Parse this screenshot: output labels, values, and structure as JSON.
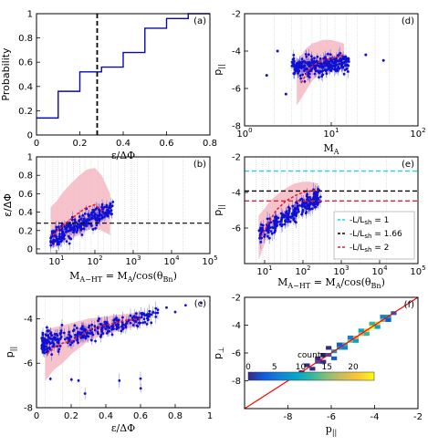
{
  "colors": {
    "points": "#1010d0",
    "band": "#f4b9c3",
    "median": "#e0203a",
    "frame": "#000000",
    "cdf": "#0a0aa8",
    "lines": [
      "#18d8d8",
      "#000000",
      "#e0203a"
    ],
    "diag": "#ff0000",
    "colormap": [
      "#352a87",
      "#0f5cdd",
      "#1481d6",
      "#06a4ca",
      "#2eb7a4",
      "#87bf77",
      "#d1bb59",
      "#fec832",
      "#f9fb0e"
    ]
  },
  "chart_data": [
    {
      "id": "a",
      "panel_label": "(a)",
      "type": "line",
      "xlabel": "ε/ΔΦ",
      "ylabel": "Probability",
      "xlim": [
        0,
        0.8
      ],
      "ylim": [
        0,
        1
      ],
      "xscale": "linear",
      "xticks": [
        "0",
        "0.2",
        "0.4",
        "0.6",
        "0.8"
      ],
      "xtick_values": [
        0,
        0.2,
        0.4,
        0.6,
        0.8
      ],
      "yticks": [
        "0",
        "0.2",
        "0.4",
        "0.6",
        "0.8",
        "1"
      ],
      "ytick_values": [
        0,
        0.2,
        0.4,
        0.6,
        0.8,
        1
      ],
      "step_x": [
        0,
        0.1,
        0.1,
        0.2,
        0.2,
        0.3,
        0.3,
        0.4,
        0.4,
        0.5,
        0.5,
        0.6,
        0.6,
        0.7,
        0.7,
        0.8
      ],
      "step_y": [
        0.14,
        0.14,
        0.36,
        0.36,
        0.52,
        0.52,
        0.56,
        0.56,
        0.68,
        0.68,
        0.88,
        0.88,
        0.96,
        0.96,
        1.0,
        1.0
      ],
      "vline": 0.28
    },
    {
      "id": "d",
      "panel_label": "(d)",
      "type": "scatter",
      "xlabel": "M_A",
      "ylabel": "p_||",
      "xlim": [
        1,
        100
      ],
      "ylim": [
        -8,
        -2
      ],
      "xscale": "log",
      "xticks": [
        "10",
        "10",
        "10"
      ],
      "xtick_exp": [
        "0",
        "1",
        "2"
      ],
      "xtick_values": [
        1,
        10,
        100
      ],
      "yticks": [
        "-8",
        "-6",
        "-4",
        "-2"
      ],
      "ytick_values": [
        -8,
        -6,
        -4,
        -2
      ],
      "cloud": {
        "x_range": [
          3.5,
          16
        ],
        "y_center": -4.8,
        "y_spread": 0.9,
        "count": 260,
        "seed": 11
      },
      "outliers_x": [
        1.8,
        2.4,
        3.0,
        25,
        40
      ],
      "outliers_y": [
        -5.3,
        -4.0,
        -6.3,
        -4.2,
        -4.5
      ],
      "band_x": [
        4,
        5,
        6,
        7,
        8,
        10,
        12,
        14
      ],
      "band_lo": [
        -6.9,
        -6.2,
        -5.6,
        -5.3,
        -5.1,
        -4.9,
        -4.7,
        -4.6
      ],
      "band_hi": [
        -4.6,
        -3.9,
        -3.6,
        -3.5,
        -3.4,
        -3.4,
        -3.5,
        -3.6
      ],
      "median_x": [
        4.5,
        5.5,
        6.5,
        8,
        10,
        12,
        14
      ],
      "median_y": [
        -5.7,
        -5.0,
        -4.7,
        -4.5,
        -4.4,
        -4.3,
        -4.2
      ],
      "vlines": [
        2.2,
        3.5,
        4.5,
        6,
        7.5,
        9,
        11,
        15,
        20,
        32,
        47
      ]
    },
    {
      "id": "b",
      "panel_label": "(b)",
      "type": "scatter",
      "xlabel": "M_{A-HT} = M_A/cos(θ_{Bn})",
      "ylabel": "ε/ΔΦ",
      "xlim": [
        3,
        100000
      ],
      "ylim": [
        -0.05,
        1
      ],
      "xscale": "log",
      "xticks": [
        "10",
        "10",
        "10",
        "10",
        "10"
      ],
      "xtick_exp": [
        "1",
        "2",
        "3",
        "4",
        "5"
      ],
      "xtick_values": [
        10,
        100,
        1000,
        10000,
        100000
      ],
      "yticks": [
        "0",
        "0.2",
        "0.4",
        "0.6",
        "0.8",
        "1"
      ],
      "ytick_values": [
        0,
        0.2,
        0.4,
        0.6,
        0.8,
        1
      ],
      "cloud": {
        "x_range": [
          7,
          300
        ],
        "y_center": 0.35,
        "y_spread": 0.18,
        "count": 240,
        "seed": 23
      },
      "band_x": [
        7,
        10,
        15,
        25,
        40,
        60,
        100,
        150,
        250
      ],
      "band_lo": [
        0.0,
        0.03,
        0.08,
        0.12,
        0.15,
        0.2,
        0.22,
        0.2,
        0.15
      ],
      "band_hi": [
        0.45,
        0.52,
        0.62,
        0.72,
        0.8,
        0.86,
        0.88,
        0.8,
        0.6
      ],
      "median_x": [
        8,
        12,
        20,
        35,
        60,
        100,
        170
      ],
      "median_y": [
        0.15,
        0.22,
        0.3,
        0.38,
        0.45,
        0.48,
        0.4
      ],
      "hline": 0.28,
      "vlines": [
        5,
        8,
        11,
        14,
        19,
        28,
        40,
        55,
        80,
        120,
        170,
        260,
        400,
        600,
        900,
        1300,
        2500,
        6000,
        20000
      ]
    },
    {
      "id": "e",
      "panel_label": "(e)",
      "type": "scatter",
      "xlabel": "M_{A-HT} = M_A/cos(θ_{Bn})",
      "ylabel": "p_||",
      "xlim": [
        3,
        100000
      ],
      "ylim": [
        -8,
        -2
      ],
      "xscale": "log",
      "xticks": [
        "10",
        "10",
        "10",
        "10",
        "10"
      ],
      "xtick_exp": [
        "1",
        "2",
        "3",
        "4",
        "5"
      ],
      "xtick_values": [
        10,
        100,
        1000,
        10000,
        100000
      ],
      "yticks": [
        "-6",
        "-4",
        "-2"
      ],
      "ytick_values": [
        -6,
        -4,
        -2
      ],
      "cloud": {
        "x_range": [
          7,
          300
        ],
        "y_center": -4.7,
        "y_spread": 0.85,
        "count": 250,
        "seed": 37
      },
      "band_x": [
        7,
        10,
        15,
        25,
        40,
        60,
        100,
        150,
        250
      ],
      "band_lo": [
        -7.8,
        -6.9,
        -6.1,
        -5.5,
        -5.1,
        -4.9,
        -4.8,
        -4.7,
        -4.6
      ],
      "band_hi": [
        -5.3,
        -4.9,
        -4.4,
        -4.0,
        -3.7,
        -3.5,
        -3.4,
        -3.4,
        -3.5
      ],
      "median_x": [
        8,
        12,
        20,
        35,
        60,
        100,
        170,
        250
      ],
      "median_y": [
        -6.5,
        -5.8,
        -5.0,
        -4.5,
        -4.2,
        -4.0,
        -3.9,
        -3.9
      ],
      "hlines": [
        -2.8,
        -3.92,
        -4.48
      ],
      "vlines": [
        6,
        9,
        13,
        18,
        26,
        38,
        55,
        80,
        120,
        180,
        270,
        420,
        700,
        1200,
        3000,
        15000
      ],
      "legend": [
        "-L/L_sh = 1",
        "-L/L_sh = 1.66",
        "-L/L_sh = 2"
      ]
    },
    {
      "id": "c",
      "panel_label": "(c)",
      "type": "scatter",
      "xlabel": "ε/ΔΦ",
      "ylabel": "p_||",
      "xlim": [
        0,
        1
      ],
      "ylim": [
        -8,
        -3
      ],
      "xscale": "linear",
      "xticks": [
        "0",
        "0.2",
        "0.4",
        "0.6",
        "0.8",
        "1"
      ],
      "xtick_values": [
        0,
        0.2,
        0.4,
        0.6,
        0.8,
        1
      ],
      "yticks": [
        "-8",
        "-6",
        "-4"
      ],
      "ytick_values": [
        -8,
        -6,
        -4
      ],
      "cloud": {
        "x_range": [
          0.03,
          0.7
        ],
        "count": 300,
        "seed": 51
      },
      "band_x": [
        0.05,
        0.1,
        0.15,
        0.2,
        0.3,
        0.4,
        0.5,
        0.6
      ],
      "band_lo": [
        -6.8,
        -6.3,
        -6.0,
        -5.6,
        -5.0,
        -4.7,
        -4.5,
        -4.3
      ],
      "band_hi": [
        -4.5,
        -4.4,
        -4.3,
        -4.2,
        -4.0,
        -3.9,
        -3.8,
        -3.7
      ],
      "median_x": [
        0.06,
        0.1,
        0.15,
        0.2,
        0.25,
        0.3,
        0.4,
        0.5,
        0.6
      ],
      "median_y": [
        -5.6,
        -5.3,
        -5.1,
        -5.0,
        -4.8,
        -4.5,
        -4.3,
        -4.1,
        -4.0
      ],
      "vlines": [
        0.05,
        0.15,
        0.25
      ]
    },
    {
      "id": "f",
      "panel_label": "(f)",
      "type": "heatmap",
      "xlabel": "p_||",
      "ylabel": "p_⊥",
      "xlim": [
        -10,
        -2
      ],
      "ylim": [
        -10,
        -2
      ],
      "xscale": "linear",
      "xticks": [
        "-8",
        "-6",
        "-4",
        "-2"
      ],
      "xtick_values": [
        -8,
        -6,
        -4,
        -2
      ],
      "yticks": [
        "-8",
        "-6",
        "-4",
        "-2"
      ],
      "ytick_values": [
        -8,
        -6,
        -4,
        -2
      ],
      "colorbar_label": "counts",
      "colorbar_ticks": [
        "0",
        "5",
        "10",
        "15",
        "20"
      ],
      "colorbar_values": [
        0,
        5,
        10,
        15,
        20
      ],
      "colorbar_max": 24,
      "cells": [
        [
          -7.5,
          -7.5,
          2
        ],
        [
          -7.0,
          -7.25,
          1
        ],
        [
          -6.75,
          -6.75,
          3
        ],
        [
          -6.5,
          -6.25,
          2
        ],
        [
          -6.25,
          -6.25,
          5
        ],
        [
          -6.0,
          -6.0,
          8
        ],
        [
          -6.0,
          -6.5,
          3
        ],
        [
          -5.75,
          -5.75,
          10
        ],
        [
          -5.5,
          -5.5,
          12
        ],
        [
          -5.5,
          -5.75,
          6
        ],
        [
          -5.25,
          -5.25,
          14
        ],
        [
          -5.0,
          -5.0,
          16
        ],
        [
          -5.0,
          -5.25,
          9
        ],
        [
          -4.75,
          -4.75,
          18
        ],
        [
          -4.5,
          -4.5,
          20
        ],
        [
          -4.5,
          -4.75,
          12
        ],
        [
          -4.25,
          -4.25,
          22
        ],
        [
          -4.0,
          -4.0,
          19
        ],
        [
          -4.0,
          -4.25,
          10
        ],
        [
          -3.75,
          -3.75,
          14
        ],
        [
          -3.5,
          -3.5,
          8
        ],
        [
          -3.5,
          -3.75,
          5
        ],
        [
          -3.25,
          -3.25,
          3
        ],
        [
          -6.75,
          -6.5,
          2
        ],
        [
          -7.25,
          -7.0,
          1
        ],
        [
          -6.25,
          -5.75,
          2
        ],
        [
          -5.75,
          -5.5,
          4
        ],
        [
          -5.25,
          -5.0,
          6
        ],
        [
          -4.75,
          -4.5,
          9
        ],
        [
          -4.25,
          -4.0,
          11
        ],
        [
          -3.75,
          -3.5,
          6
        ],
        [
          -6.5,
          -6.75,
          1
        ]
      ],
      "diag": [
        [
          -10,
          -10
        ],
        [
          -2,
          -2
        ]
      ]
    }
  ]
}
